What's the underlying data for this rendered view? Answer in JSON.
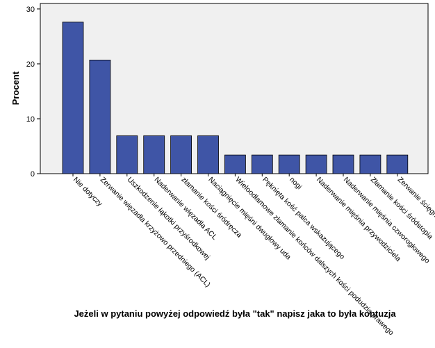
{
  "chart_data": {
    "type": "bar",
    "xlabel": "Jeżeli w pytaniu powyżej odpowiedź była \"tak\" napisz jaka to była kontuzja",
    "ylabel": "Procent",
    "ylim": [
      0,
      31
    ],
    "yticks": [
      0,
      10,
      20,
      30
    ],
    "grid": false,
    "bar_color": "#3f55a6",
    "plot_background": "#f0f0f0",
    "categories": [
      "Nie dotyczy",
      "Zerwanie więzadła krzyżowo przedniego (ACL)",
      "Uszkodzenie łąkotki przyśrodkowej",
      "Naderwanie więzadła ACL",
      "złamanie kości śródręcza",
      "Naciągnięcie mięśni dwugłowy uda",
      "Wieloodłamowe złamanie końców dalszych kości podudzia prawego",
      "Pęknięta kość palca wskazującego",
      "nogi",
      "Naderwanie mięśnia przywodziciela",
      "Naderwanie mięśnia czworogłowego",
      "Złamanie kości śródstopia",
      "Zerwanie ścięgno"
    ],
    "values": [
      27.6,
      20.7,
      6.9,
      6.9,
      6.9,
      6.9,
      3.4,
      3.4,
      3.4,
      3.4,
      3.4,
      3.4,
      3.4
    ]
  }
}
